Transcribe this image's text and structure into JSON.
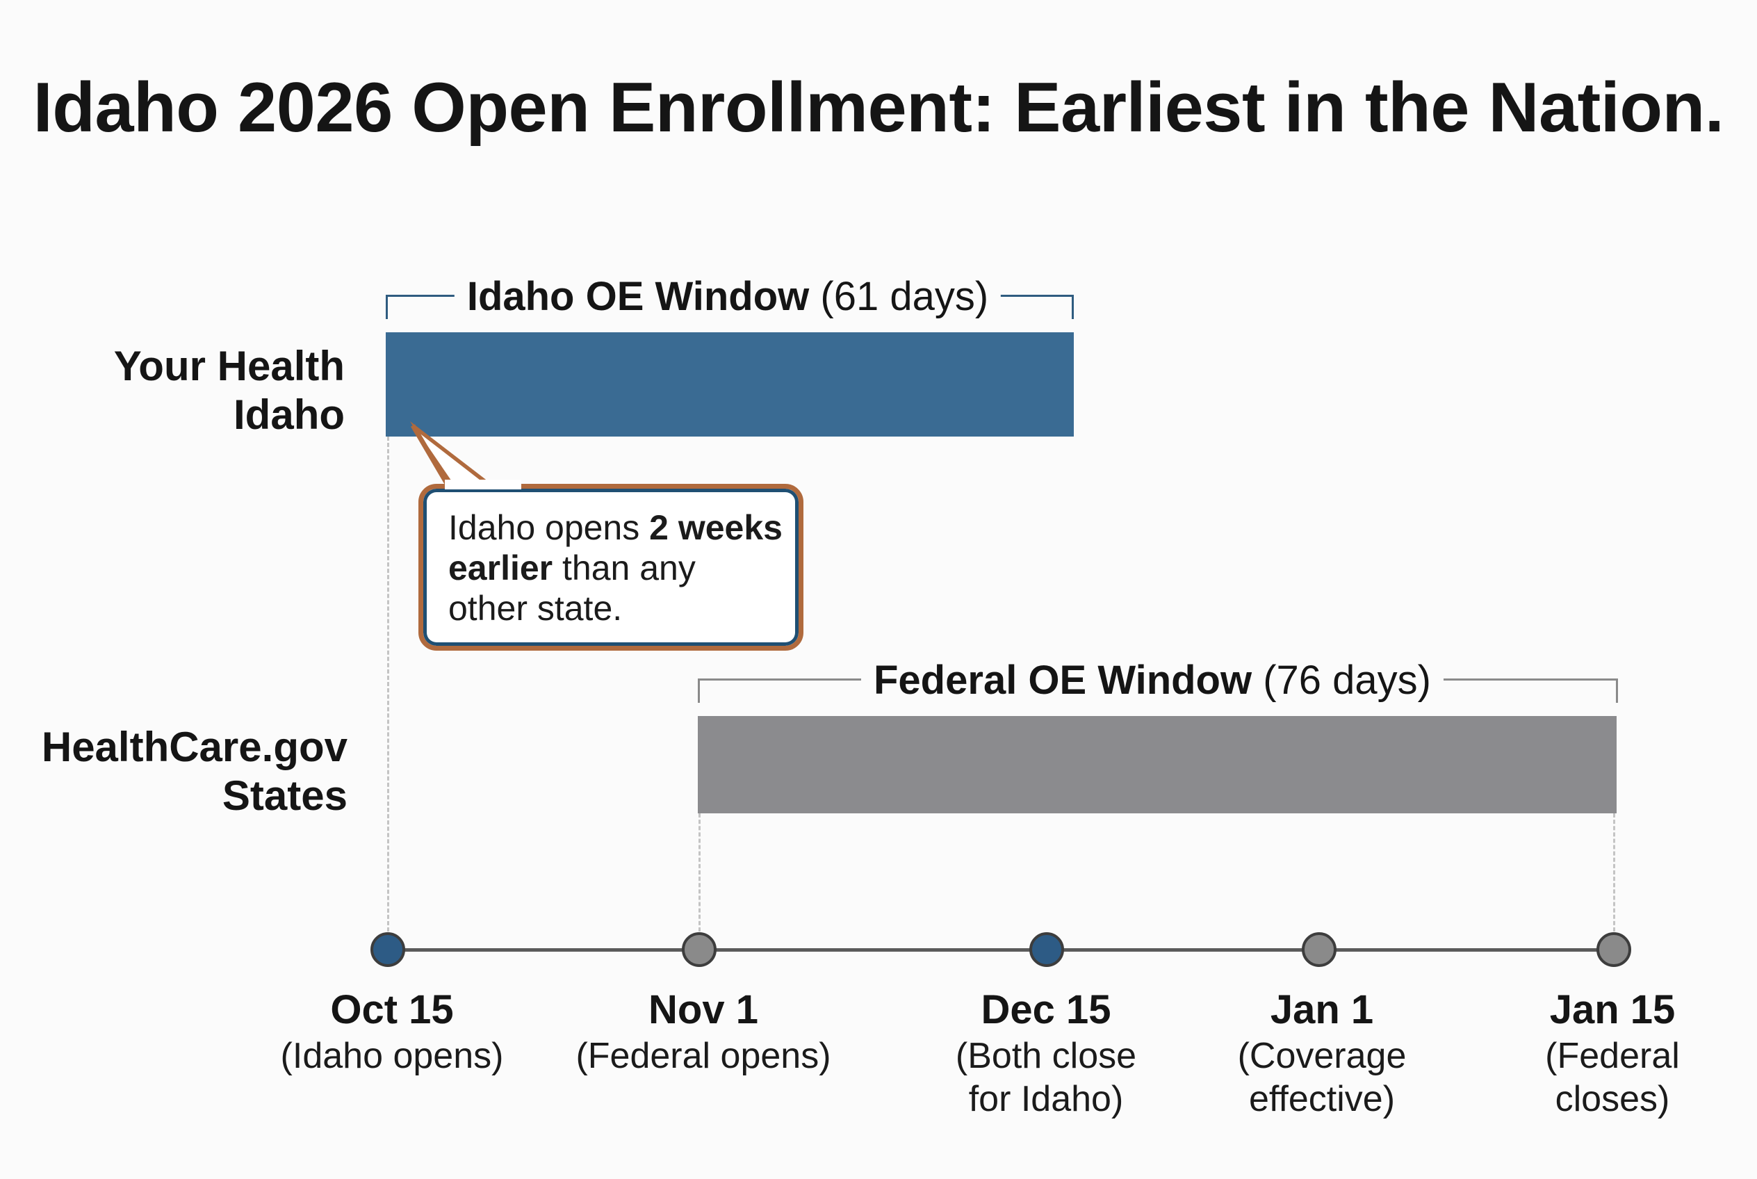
{
  "title": "Idaho 2026 Open Enrollment: Earliest in the Nation.",
  "colors": {
    "idaho": "#3a6b93",
    "federal": "#8b8b8e",
    "idaho_bracket": "#2f5c80",
    "federal_bracket": "#8a8a8a",
    "callout_border": "#b06a3d",
    "idaho_dot": "#2d5b85",
    "federal_dot": "#8a8a8a"
  },
  "rows": [
    {
      "label_line1": "Your Health",
      "label_line2": "Idaho",
      "window_name": "Idaho OE Window",
      "window_days": "(61 days)",
      "start": "Oct 15",
      "end": "Dec 15"
    },
    {
      "label_line1": "HealthCare.gov",
      "label_line2": "States",
      "window_name": "Federal OE Window",
      "window_days": "(76 days)",
      "start": "Nov 1",
      "end": "Jan 15"
    }
  ],
  "callout": {
    "part1": "Idaho opens ",
    "bold1": "2 weeks",
    "bold2": "earlier",
    "part2": " than any",
    "part3": "other state."
  },
  "timeline": [
    {
      "date": "Oct 15",
      "note1": "(Idaho opens)",
      "note2": "",
      "dot": "idaho"
    },
    {
      "date": "Nov 1",
      "note1": "(Federal opens)",
      "note2": "",
      "dot": "federal"
    },
    {
      "date": "Dec 15",
      "note1": "(Both close",
      "note2": "for Idaho)",
      "dot": "idaho"
    },
    {
      "date": "Jan 1",
      "note1": "(Coverage",
      "note2": "effective)",
      "dot": "federal"
    },
    {
      "date": "Jan 15",
      "note1": "(Federal",
      "note2": "closes)",
      "dot": "federal"
    }
  ]
}
